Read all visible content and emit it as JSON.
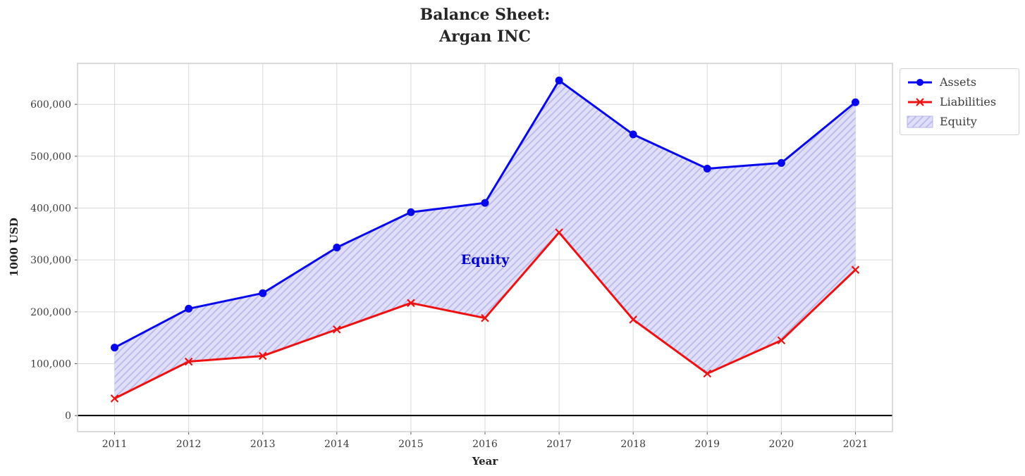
{
  "chart_data": {
    "type": "line",
    "title": "Balance Sheet:\nArgan INC",
    "xlabel": "Year",
    "ylabel": "1000 USD",
    "x": [
      2011,
      2012,
      2013,
      2014,
      2015,
      2016,
      2017,
      2018,
      2019,
      2020,
      2021
    ],
    "series": [
      {
        "name": "Assets",
        "color": "#0707ee",
        "marker": "circle",
        "values": [
          131000,
          206000,
          236000,
          324000,
          392000,
          410000,
          646000,
          542000,
          476000,
          487000,
          604000
        ]
      },
      {
        "name": "Liabilities",
        "color": "#ee1111",
        "marker": "x",
        "values": [
          33000,
          104000,
          115000,
          166000,
          217000,
          188000,
          353000,
          185000,
          81000,
          145000,
          281000
        ]
      }
    ],
    "area": {
      "name": "Equity",
      "between": [
        "Assets",
        "Liabilities"
      ],
      "fill": "#e0dff7",
      "hatch_color": "#b6b5ec",
      "hatch": "//",
      "annotation": {
        "text": "Equity",
        "x": 2016,
        "y": 300000,
        "color": "#0000cc"
      }
    },
    "xlim": [
      2010.5,
      2021.5
    ],
    "ylim": [
      -31000,
      679000
    ],
    "xticks": {
      "values": [
        2011,
        2012,
        2013,
        2014,
        2015,
        2016,
        2017,
        2018,
        2019,
        2020,
        2021
      ],
      "labels": [
        "2011",
        "2012",
        "2013",
        "2014",
        "2015",
        "2016",
        "2017",
        "2018",
        "2019",
        "2020",
        "2021"
      ]
    },
    "yticks": {
      "values": [
        0,
        100000,
        200000,
        300000,
        400000,
        500000,
        600000
      ],
      "labels": [
        "0",
        "100,000",
        "200,000",
        "300,000",
        "400,000",
        "500,000",
        "600,000"
      ]
    },
    "grid": true,
    "zero_line": true,
    "legend_position": "outside-top-right",
    "legend": [
      "Assets",
      "Liabilities",
      "Equity"
    ]
  }
}
